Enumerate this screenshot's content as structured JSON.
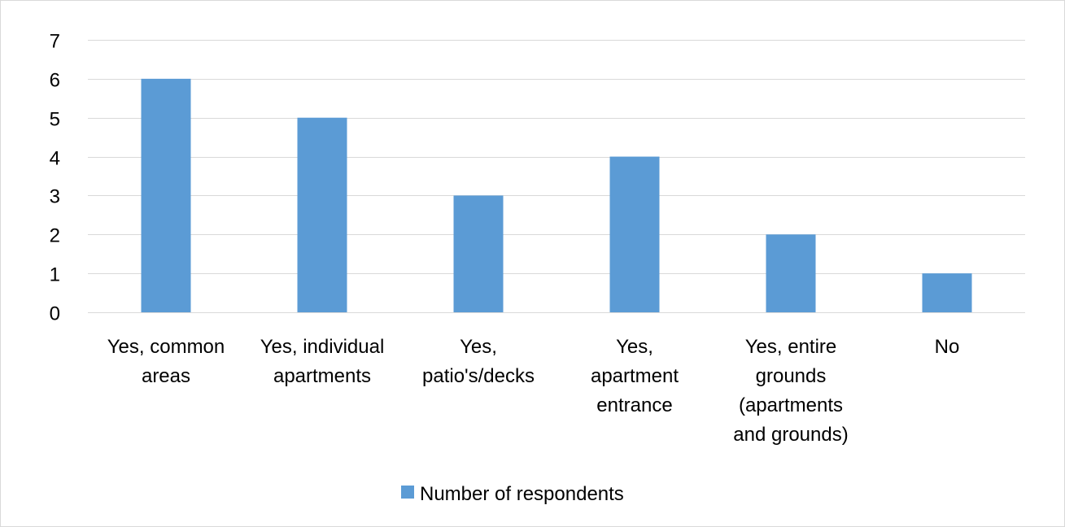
{
  "chart_data": {
    "type": "bar",
    "categories": [
      "Yes, common areas",
      "Yes, individual apartments",
      "Yes, patio's/decks",
      "Yes, apartment entrance",
      "Yes, entire grounds (apartments and grounds)",
      "No"
    ],
    "category_label_lines": [
      [
        "Yes, common",
        "areas"
      ],
      [
        "Yes, individual",
        "apartments"
      ],
      [
        "Yes,",
        "patio's/decks"
      ],
      [
        "Yes,",
        "apartment",
        "entrance"
      ],
      [
        "Yes, entire",
        "grounds",
        "(apartments",
        "and grounds)"
      ],
      [
        "No"
      ]
    ],
    "series": [
      {
        "name": "Number of respondents",
        "values": [
          6,
          5,
          3,
          4,
          2,
          1
        ],
        "color": "#5b9bd5"
      }
    ],
    "yticks": [
      "0",
      "1",
      "2",
      "3",
      "4",
      "5",
      "6",
      "7"
    ],
    "ylim": [
      0,
      7
    ],
    "grid": true,
    "legend": "bottom",
    "colors": {
      "bar": "#5b9bd5",
      "grid": "#d9d9d9",
      "frame": "#d9d9d9",
      "text": "#000000"
    }
  }
}
